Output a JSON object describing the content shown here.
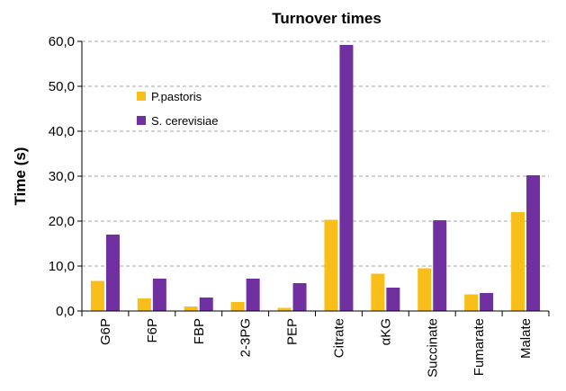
{
  "chart_data": {
    "type": "bar",
    "title": "Turnover times",
    "xlabel": "",
    "ylabel": "Time (s)",
    "ylim": [
      0,
      60
    ],
    "yticks": [
      "0,0",
      "10,0",
      "20,0",
      "30,0",
      "40,0",
      "50,0",
      "60,0"
    ],
    "categories": [
      "G6P",
      "F6P",
      "FBP",
      "2-3PG",
      "PEP",
      "Citrate",
      "αKG",
      "Succinate",
      "Fumarate",
      "Malate"
    ],
    "series": [
      {
        "name": "P.pastoris",
        "color": "#f9be1a",
        "values": [
          6.7,
          2.8,
          1.0,
          2.0,
          0.7,
          20.3,
          8.3,
          9.5,
          3.7,
          22.0
        ]
      },
      {
        "name": "S. cerevisiae",
        "color": "#7030a0",
        "values": [
          17.0,
          7.2,
          3.0,
          7.2,
          6.2,
          59.2,
          5.2,
          20.2,
          4.0,
          30.2
        ]
      }
    ],
    "grid": true,
    "grid_style": "dashed",
    "legend_position": "top-left"
  }
}
